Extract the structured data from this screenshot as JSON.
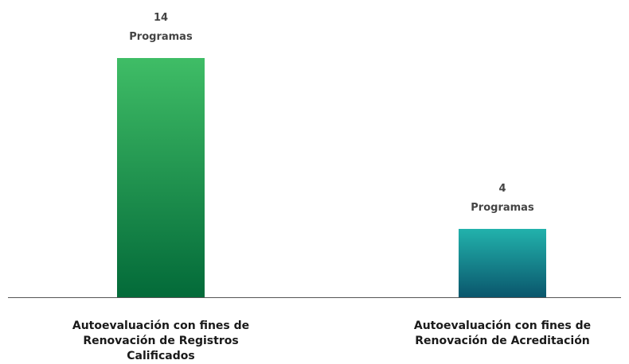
{
  "chart_data": {
    "type": "bar",
    "categories": [
      "Autoevaluación con fines de Renovación de Registros Calificados",
      "Autoevaluación con fines de Renovación de Acreditación"
    ],
    "values": [
      14,
      4
    ],
    "value_labels": [
      "14\nProgramas",
      "4\nProgramas"
    ],
    "gradients": [
      [
        "#3fbd66",
        "#036a39"
      ],
      [
        "#22b2ac",
        "#0a566c"
      ]
    ],
    "ylim": [
      0,
      14
    ]
  }
}
